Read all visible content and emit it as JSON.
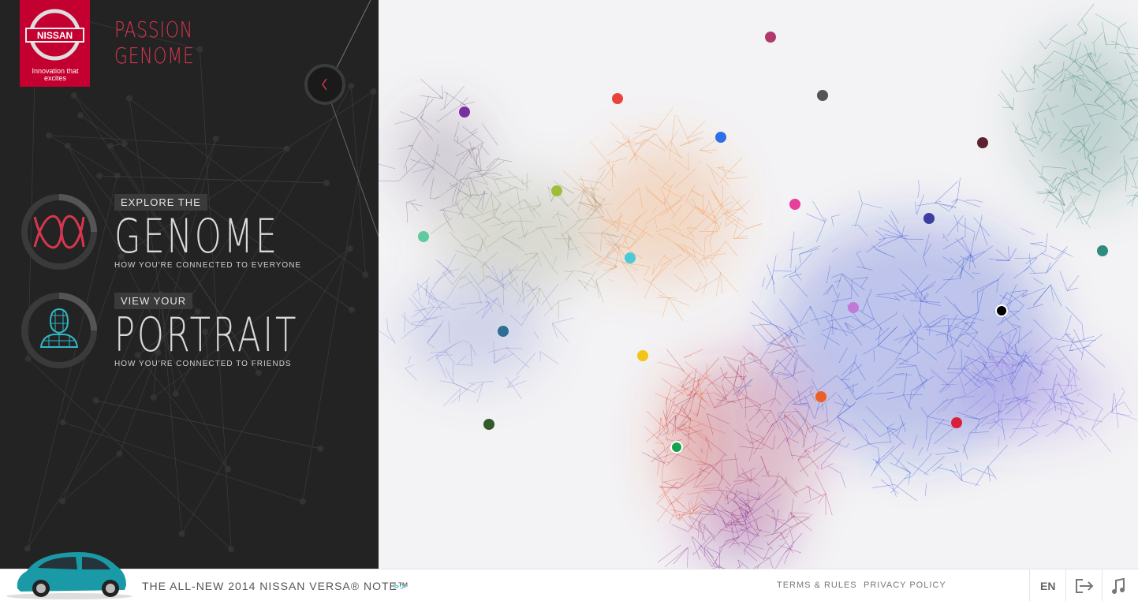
{
  "header": {
    "logo": {
      "brand": "NISSAN",
      "tagline": "Innovation that excites"
    },
    "title": [
      "PASSION",
      "GENOME"
    ]
  },
  "menu": [
    {
      "kicker": "EXPLORE THE",
      "title": "GENOME",
      "subtitle": "HOW YOU'RE CONNECTED TO EVERYONE"
    },
    {
      "kicker": "VIEW YOUR",
      "title": "PORTRAIT",
      "subtitle": "HOW YOU'RE CONNECTED TO FRIENDS"
    }
  ],
  "footer": {
    "promo": "THE ALL-NEW 2014 NISSAN VERSA® NOTE™",
    "promo_arrow": ">>",
    "links": [
      "TERMS & RULES",
      "PRIVACY POLICY"
    ],
    "language": "EN"
  }
}
